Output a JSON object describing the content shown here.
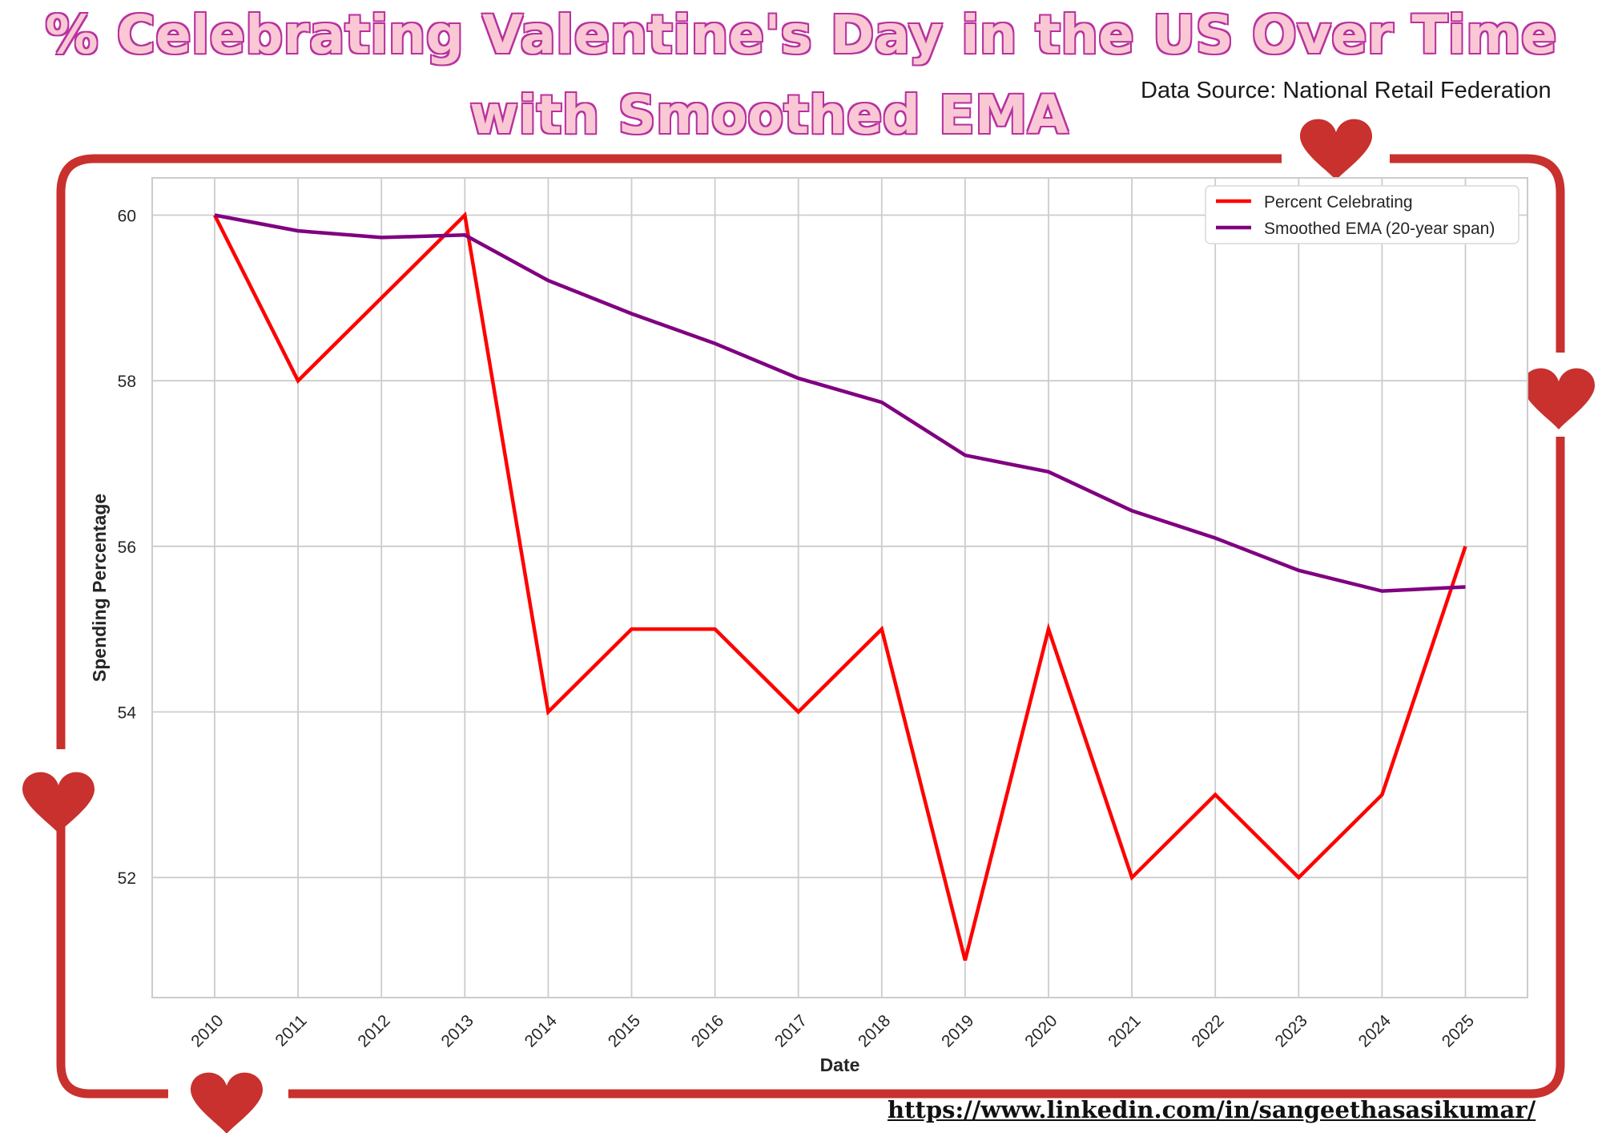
{
  "title_line1": "% Celebrating Valentine's Day in the US Over Time",
  "title_line2": "with Smoothed EMA",
  "source": "Data Source: National Retail Federation",
  "url": "https://www.linkedin.com/in/sangeethasasikumar/",
  "colors": {
    "title_fill": "#f9c8d4",
    "title_outline": "#b8319f",
    "frame": "#c8312e",
    "heart": "#c8312e",
    "series_percent": "#ff0000",
    "series_ema": "#800080",
    "grid": "#cccccc"
  },
  "chart_data": {
    "type": "line",
    "xlabel": "Date",
    "ylabel": "Spending Percentage",
    "x": [
      "2010",
      "2011",
      "2012",
      "2013",
      "2014",
      "2015",
      "2016",
      "2017",
      "2018",
      "2019",
      "2020",
      "2021",
      "2022",
      "2023",
      "2024",
      "2025"
    ],
    "yticks": [
      52,
      54,
      56,
      58,
      60
    ],
    "ylim": [
      50.55,
      60.45
    ],
    "grid": true,
    "legend_position": "top-right",
    "series": [
      {
        "name": "Percent Celebrating",
        "color": "#ff0000",
        "values": [
          60,
          58,
          59,
          60,
          54,
          55,
          55,
          54,
          55,
          51,
          55,
          52,
          53,
          52,
          53,
          56
        ]
      },
      {
        "name": "Smoothed EMA (20-year span)",
        "color": "#800080",
        "values": [
          60,
          59.81,
          59.73,
          59.76,
          59.21,
          58.81,
          58.45,
          58.03,
          57.74,
          57.1,
          56.9,
          56.43,
          56.1,
          55.71,
          55.46,
          55.51
        ]
      }
    ]
  }
}
